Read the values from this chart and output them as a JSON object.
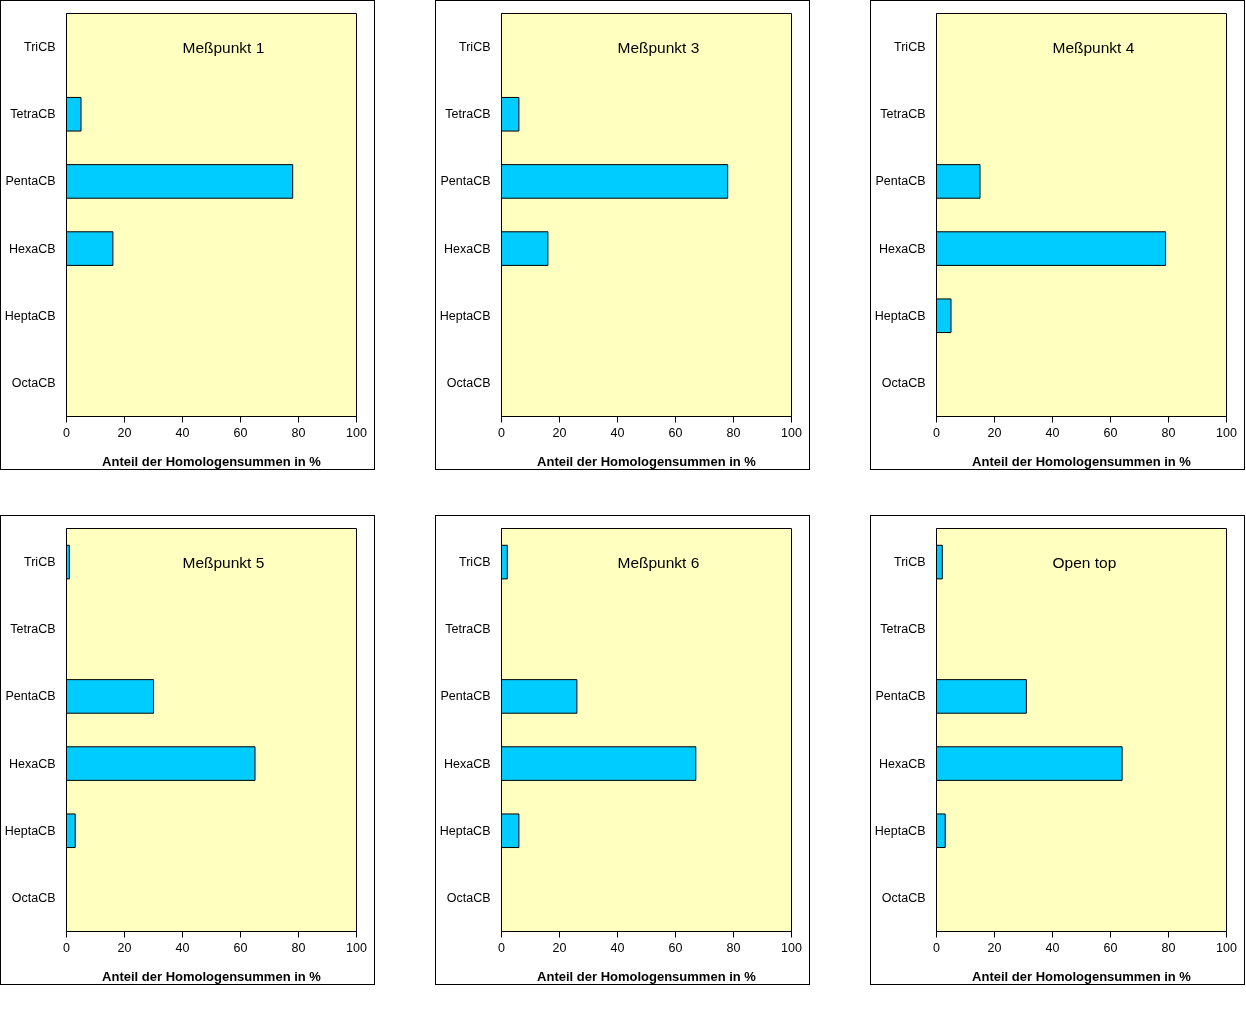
{
  "chart_data": [
    {
      "type": "bar",
      "orientation": "horizontal",
      "title": "Meßpunkt  1",
      "xlabel": "Anteil der Homologensummen in %",
      "categories": [
        "TriCB",
        "TetraCB",
        "PentaCB",
        "HexaCB",
        "HeptaCB",
        "OctaCB"
      ],
      "values": [
        null,
        5,
        78,
        16,
        null,
        null
      ],
      "color": "#00ccff",
      "xlim": [
        0,
        100
      ],
      "xticks": [
        0,
        20,
        40,
        60,
        80,
        100
      ],
      "grid": false
    },
    {
      "type": "bar",
      "orientation": "horizontal",
      "title": "Meßpunkt 3",
      "xlabel": "Anteil der Homologensummen in %",
      "categories": [
        "TriCB",
        "TetraCB",
        "PentaCB",
        "HexaCB",
        "HeptaCB",
        "OctaCB"
      ],
      "values": [
        null,
        6,
        78,
        16,
        null,
        null
      ],
      "color": "#00ccff",
      "xlim": [
        0,
        100
      ],
      "xticks": [
        0,
        20,
        40,
        60,
        80,
        100
      ],
      "grid": false
    },
    {
      "type": "bar",
      "orientation": "horizontal",
      "title": "Meßpunkt 4",
      "xlabel": "Anteil der Homologensummen in %",
      "categories": [
        "TriCB",
        "TetraCB",
        "PentaCB",
        "HexaCB",
        "HeptaCB",
        "OctaCB"
      ],
      "values": [
        null,
        null,
        15,
        79,
        5,
        null
      ],
      "color": "#00ccff",
      "xlim": [
        0,
        100
      ],
      "xticks": [
        0,
        20,
        40,
        60,
        80,
        100
      ],
      "grid": false
    },
    {
      "type": "bar",
      "orientation": "horizontal",
      "title": "Meßpunkt 5",
      "xlabel": "Anteil der Homologensummen in %",
      "categories": [
        "TriCB",
        "TetraCB",
        "PentaCB",
        "HexaCB",
        "HeptaCB",
        "OctaCB"
      ],
      "values": [
        1,
        null,
        30,
        65,
        3,
        null
      ],
      "color": "#00ccff",
      "xlim": [
        0,
        100
      ],
      "xticks": [
        0,
        20,
        40,
        60,
        80,
        100
      ],
      "grid": false
    },
    {
      "type": "bar",
      "orientation": "horizontal",
      "title": "Meßpunkt 6",
      "xlabel": "Anteil der Homologensummen in %",
      "categories": [
        "TriCB",
        "TetraCB",
        "PentaCB",
        "HexaCB",
        "HeptaCB",
        "OctaCB"
      ],
      "values": [
        2,
        null,
        26,
        67,
        6,
        null
      ],
      "color": "#00ccff",
      "xlim": [
        0,
        100
      ],
      "xticks": [
        0,
        20,
        40,
        60,
        80,
        100
      ],
      "grid": false
    },
    {
      "type": "bar",
      "orientation": "horizontal",
      "title": "Open top",
      "xlabel": "Anteil der Homologensummen in %",
      "categories": [
        "TriCB",
        "TetraCB",
        "PentaCB",
        "HexaCB",
        "HeptaCB",
        "OctaCB"
      ],
      "values": [
        2,
        null,
        31,
        64,
        3,
        null
      ],
      "color": "#00ccff",
      "xlim": [
        0,
        100
      ],
      "xticks": [
        0,
        20,
        40,
        60,
        80,
        100
      ],
      "grid": false
    }
  ]
}
